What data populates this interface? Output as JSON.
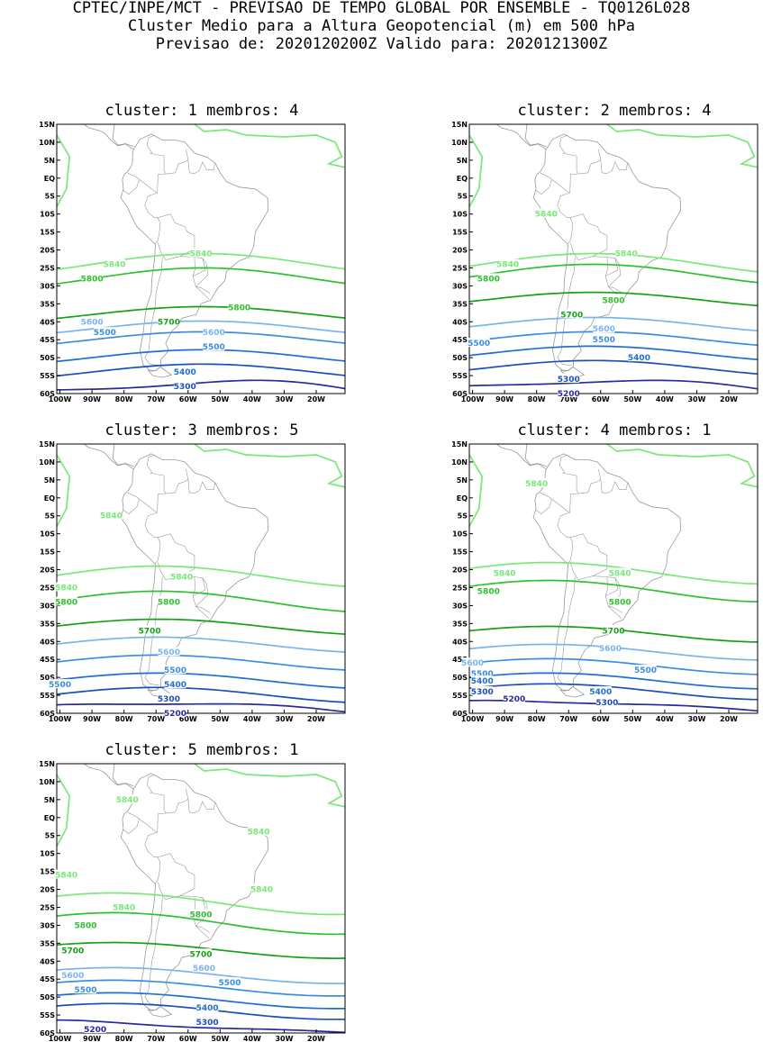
{
  "header": {
    "line1": "CPTEC/INPE/MCT - PREVISAO DE TEMPO GLOBAL POR ENSEMBLE - TQ0126L028",
    "line2": "Cluster Medio para a Altura Geopotencial (m) em 500 hPa",
    "line3": "Previsao de: 2020120200Z    Valido para: 2020121300Z"
  },
  "axes": {
    "lat_labels": [
      "15N",
      "10N",
      "5N",
      "EQ",
      "5S",
      "10S",
      "15S",
      "20S",
      "25S",
      "30S",
      "35S",
      "40S",
      "45S",
      "50S",
      "55S",
      "60S"
    ],
    "lon_labels": [
      "100W",
      "90W",
      "80W",
      "70W",
      "60W",
      "50W",
      "40W",
      "30W",
      "20W"
    ]
  },
  "colors": {
    "5840": "#78e878",
    "5800": "#2ec02e",
    "5700": "#16a016",
    "5600": "#78b4ee",
    "5500": "#3a8ee0",
    "5400": "#1f6fd0",
    "5300": "#1a4fb8",
    "5200": "#2a2aa0",
    "coast": "#999999"
  },
  "clusters": [
    {
      "title": "cluster: 1   membros: 4",
      "labels": [
        {
          "text": "5840",
          "lon": -83,
          "lat": -24,
          "c": "5840"
        },
        {
          "text": "5840",
          "lon": -56,
          "lat": -21,
          "c": "5840"
        },
        {
          "text": "5800",
          "lon": -90,
          "lat": -28,
          "c": "5800"
        },
        {
          "text": "5800",
          "lon": -44,
          "lat": -36,
          "c": "5800"
        },
        {
          "text": "5700",
          "lon": -66,
          "lat": -40,
          "c": "5700"
        },
        {
          "text": "5600",
          "lon": -90,
          "lat": -40,
          "c": "5600"
        },
        {
          "text": "5600",
          "lon": -52,
          "lat": -43,
          "c": "5600"
        },
        {
          "text": "5500",
          "lon": -86,
          "lat": -43,
          "c": "5500"
        },
        {
          "text": "5500",
          "lon": -52,
          "lat": -47,
          "c": "5500"
        },
        {
          "text": "5400",
          "lon": -61,
          "lat": -54,
          "c": "5400"
        },
        {
          "text": "5300",
          "lon": -61,
          "lat": -58,
          "c": "5300"
        }
      ]
    },
    {
      "title": "cluster: 2   membros: 4",
      "labels": [
        {
          "text": "5840",
          "lon": -77,
          "lat": -10,
          "c": "5840"
        },
        {
          "text": "5840",
          "lon": -89,
          "lat": -24,
          "c": "5840"
        },
        {
          "text": "5840",
          "lon": -52,
          "lat": -21,
          "c": "5840"
        },
        {
          "text": "5800",
          "lon": -95,
          "lat": -28,
          "c": "5800"
        },
        {
          "text": "5800",
          "lon": -56,
          "lat": -34,
          "c": "5800"
        },
        {
          "text": "5700",
          "lon": -69,
          "lat": -38,
          "c": "5700"
        },
        {
          "text": "5600",
          "lon": -59,
          "lat": -42,
          "c": "5600"
        },
        {
          "text": "5500",
          "lon": -98,
          "lat": -46,
          "c": "5500"
        },
        {
          "text": "5500",
          "lon": -59,
          "lat": -45,
          "c": "5500"
        },
        {
          "text": "5400",
          "lon": -48,
          "lat": -50,
          "c": "5400"
        },
        {
          "text": "5300",
          "lon": -70,
          "lat": -56,
          "c": "5300"
        },
        {
          "text": "5200",
          "lon": -70,
          "lat": -60,
          "c": "5200"
        }
      ]
    },
    {
      "title": "cluster: 3   membros: 5",
      "labels": [
        {
          "text": "5840",
          "lon": -84,
          "lat": -5,
          "c": "5840"
        },
        {
          "text": "5840",
          "lon": -98,
          "lat": -25,
          "c": "5840"
        },
        {
          "text": "5840",
          "lon": -62,
          "lat": -22,
          "c": "5840"
        },
        {
          "text": "5800",
          "lon": -98,
          "lat": -29,
          "c": "5800"
        },
        {
          "text": "5800",
          "lon": -66,
          "lat": -29,
          "c": "5800"
        },
        {
          "text": "5700",
          "lon": -72,
          "lat": -37,
          "c": "5700"
        },
        {
          "text": "5600",
          "lon": -66,
          "lat": -43,
          "c": "5600"
        },
        {
          "text": "5500",
          "lon": -64,
          "lat": -48,
          "c": "5500"
        },
        {
          "text": "5500",
          "lon": -100,
          "lat": -52,
          "c": "5500"
        },
        {
          "text": "5400",
          "lon": -64,
          "lat": -52,
          "c": "5400"
        },
        {
          "text": "5300",
          "lon": -66,
          "lat": -56,
          "c": "5300"
        },
        {
          "text": "5200",
          "lon": -64,
          "lat": -60,
          "c": "5200"
        }
      ]
    },
    {
      "title": "cluster: 4   membros: 1",
      "labels": [
        {
          "text": "5840",
          "lon": -80,
          "lat": 4,
          "c": "5840"
        },
        {
          "text": "5840",
          "lon": -90,
          "lat": -21,
          "c": "5840"
        },
        {
          "text": "5840",
          "lon": -54,
          "lat": -21,
          "c": "5840"
        },
        {
          "text": "5800",
          "lon": -95,
          "lat": -26,
          "c": "5800"
        },
        {
          "text": "5800",
          "lon": -54,
          "lat": -29,
          "c": "5800"
        },
        {
          "text": "5700",
          "lon": -56,
          "lat": -37,
          "c": "5700"
        },
        {
          "text": "5600",
          "lon": -57,
          "lat": -42,
          "c": "5600"
        },
        {
          "text": "5600",
          "lon": -100,
          "lat": -46,
          "c": "5600"
        },
        {
          "text": "5500",
          "lon": -97,
          "lat": -49,
          "c": "5500"
        },
        {
          "text": "5500",
          "lon": -46,
          "lat": -48,
          "c": "5500"
        },
        {
          "text": "5400",
          "lon": -97,
          "lat": -51,
          "c": "5400"
        },
        {
          "text": "5300",
          "lon": -97,
          "lat": -54,
          "c": "5300"
        },
        {
          "text": "5400",
          "lon": -60,
          "lat": -54,
          "c": "5400"
        },
        {
          "text": "5300",
          "lon": -58,
          "lat": -57,
          "c": "5300"
        },
        {
          "text": "5200",
          "lon": -87,
          "lat": -56,
          "c": "5200"
        }
      ]
    },
    {
      "title": "cluster: 5   membros: 1",
      "labels": [
        {
          "text": "5840",
          "lon": -79,
          "lat": 5,
          "c": "5840"
        },
        {
          "text": "5840",
          "lon": -38,
          "lat": -4,
          "c": "5840"
        },
        {
          "text": "5840",
          "lon": -98,
          "lat": -16,
          "c": "5840"
        },
        {
          "text": "5840",
          "lon": -37,
          "lat": -20,
          "c": "5840"
        },
        {
          "text": "5840",
          "lon": -80,
          "lat": -25,
          "c": "5840"
        },
        {
          "text": "5800",
          "lon": -92,
          "lat": -30,
          "c": "5800"
        },
        {
          "text": "5800",
          "lon": -56,
          "lat": -27,
          "c": "5800"
        },
        {
          "text": "5700",
          "lon": -96,
          "lat": -37,
          "c": "5700"
        },
        {
          "text": "5700",
          "lon": -56,
          "lat": -38,
          "c": "5700"
        },
        {
          "text": "5600",
          "lon": -96,
          "lat": -44,
          "c": "5600"
        },
        {
          "text": "5600",
          "lon": -55,
          "lat": -42,
          "c": "5600"
        },
        {
          "text": "5500",
          "lon": -92,
          "lat": -48,
          "c": "5500"
        },
        {
          "text": "5500",
          "lon": -47,
          "lat": -46,
          "c": "5500"
        },
        {
          "text": "5400",
          "lon": -54,
          "lat": -53,
          "c": "5400"
        },
        {
          "text": "5300",
          "lon": -54,
          "lat": -57,
          "c": "5300"
        },
        {
          "text": "5200",
          "lon": -89,
          "lat": -59,
          "c": "5200"
        }
      ]
    }
  ]
}
